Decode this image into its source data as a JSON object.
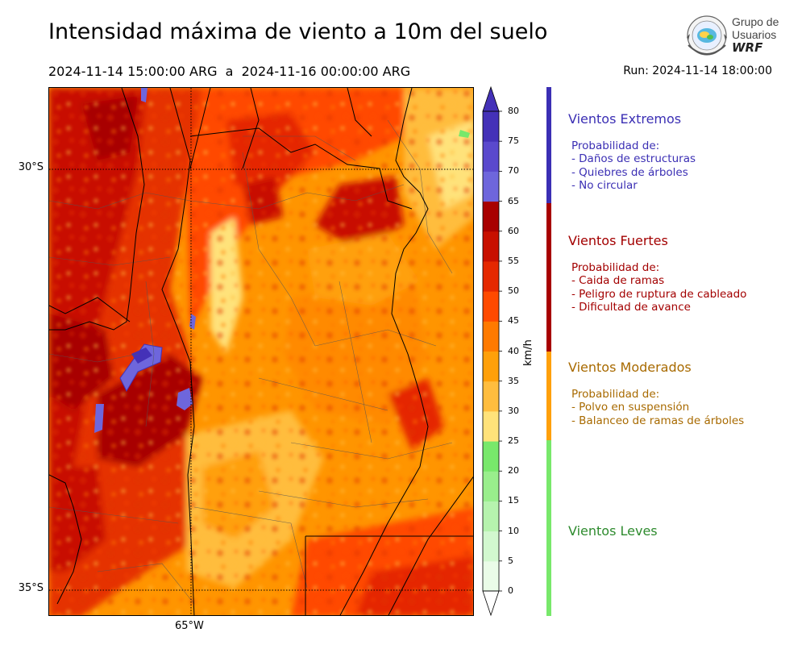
{
  "header": {
    "title": "Intensidad máxima de viento a 10m del suelo",
    "period": "2024-11-14 15:00:00 ARG  a  2024-11-16 00:00:00 ARG",
    "run": "Run: 2024-11-14 18:00:00"
  },
  "logo": {
    "line1": "Grupo de",
    "line2": "Usuarios",
    "line3": "WRF"
  },
  "map": {
    "lat_labels": [
      "30°S",
      "35°S"
    ],
    "lon_labels": [
      "65°W"
    ]
  },
  "colorbar": {
    "unit": "km/h",
    "ticks": [
      "0",
      "5",
      "10",
      "15",
      "20",
      "25",
      "30",
      "35",
      "40",
      "45",
      "50",
      "55",
      "60",
      "65",
      "70",
      "75",
      "80"
    ],
    "colors": [
      "#eafce8",
      "#d2f8cf",
      "#b6f3ae",
      "#99ee8c",
      "#78e86b",
      "#ffe27a",
      "#ffbd3e",
      "#ffa00a",
      "#ff7a00",
      "#ff4a00",
      "#e52800",
      "#c81000",
      "#a80000",
      "#6e66dc",
      "#5a49cd",
      "#4431b8"
    ]
  },
  "categories": [
    {
      "title": "Vientos Extremos",
      "color": "#3b2fb4",
      "desc": [
        "Probabilidad de:",
        "- Daños de estructuras",
        "- Quiebres de árboles",
        "- No circular"
      ]
    },
    {
      "title": "Vientos Fuertes",
      "color": "#a30000",
      "desc": [
        "Probabilidad de:",
        "- Caida de ramas",
        "- Peligro de ruptura de cableado",
        "- Dificultad de avance"
      ]
    },
    {
      "title": "Vientos Moderados",
      "color": "#a86a00",
      "desc": [
        "Probabilidad de:",
        "- Polvo en suspensión",
        "- Balanceo de ramas de árboles"
      ]
    },
    {
      "title": "Vientos Leves",
      "color": "#2e8b2e",
      "desc": []
    }
  ]
}
